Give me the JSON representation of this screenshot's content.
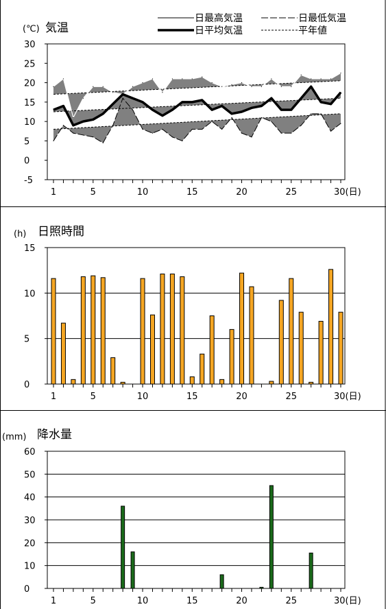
{
  "chart_data": [
    {
      "type": "line",
      "title": "気温",
      "unit_label": "(℃)",
      "x_range": [
        1,
        30
      ],
      "x_ticks": [
        1,
        5,
        10,
        15,
        20,
        25,
        30
      ],
      "x_tick_labels": [
        "1",
        "5",
        "10",
        "15",
        "20",
        "25",
        "30(日)"
      ],
      "ylim": [
        -5,
        30
      ],
      "y_ticks": [
        -5,
        0,
        5,
        10,
        15,
        20,
        25,
        30
      ],
      "y_tick_labels": [
        "-5",
        "0",
        "5",
        "10",
        "15",
        "20",
        "25",
        "30"
      ],
      "legend": [
        {
          "label": "日最高気温",
          "style": "thin-solid"
        },
        {
          "label": "日最低気温",
          "style": "thin-dash"
        },
        {
          "label": "日平均気温",
          "style": "thick-solid"
        },
        {
          "label": "平年値",
          "style": "dotted"
        }
      ],
      "fill_color": "#808080",
      "series": [
        {
          "name": "日最高気温",
          "x": [
            1,
            2,
            3,
            4,
            5,
            6,
            7,
            8,
            9,
            10,
            11,
            12,
            13,
            14,
            15,
            16,
            17,
            18,
            19,
            20,
            21,
            22,
            23,
            24,
            25,
            26,
            27,
            28,
            29,
            30
          ],
          "values": [
            19,
            21,
            11,
            16,
            19,
            19,
            17.5,
            17,
            19,
            20,
            21,
            17.5,
            21,
            21,
            21,
            21.5,
            20,
            19,
            19.5,
            20,
            19,
            19,
            21,
            19,
            19,
            22,
            21,
            21,
            21,
            22.5
          ]
        },
        {
          "name": "日最低気温",
          "x": [
            1,
            2,
            3,
            4,
            5,
            6,
            7,
            8,
            9,
            10,
            11,
            12,
            13,
            14,
            15,
            16,
            17,
            18,
            19,
            20,
            21,
            22,
            23,
            24,
            25,
            26,
            27,
            28,
            29,
            30
          ],
          "values": [
            5,
            9,
            7,
            6.5,
            6,
            4.5,
            9,
            16,
            13,
            8,
            7,
            8,
            6,
            5,
            8,
            8,
            10,
            8,
            11,
            7,
            6,
            11,
            10,
            7,
            7,
            9,
            12,
            12,
            7.5,
            9.5
          ]
        },
        {
          "name": "日平均気温",
          "x": [
            1,
            2,
            3,
            4,
            5,
            6,
            7,
            8,
            9,
            10,
            11,
            12,
            13,
            14,
            15,
            16,
            17,
            18,
            19,
            20,
            21,
            22,
            23,
            24,
            25,
            26,
            27,
            28,
            29,
            30
          ],
          "values": [
            13,
            14,
            9,
            10,
            10.5,
            12,
            14.5,
            17,
            16,
            15,
            13,
            11.5,
            13,
            15,
            15,
            15.5,
            13,
            14,
            12,
            12.5,
            13.5,
            14,
            16,
            13,
            13,
            16,
            19,
            15,
            14.5,
            17.5
          ]
        },
        {
          "name": "平年値 (最高)",
          "x": [
            1,
            30
          ],
          "values": [
            17,
            20.5
          ]
        },
        {
          "name": "平年値 (平均)",
          "x": [
            1,
            30
          ],
          "values": [
            12.5,
            16
          ]
        },
        {
          "name": "平年値 (最低)",
          "x": [
            1,
            30
          ],
          "values": [
            8,
            12
          ]
        }
      ]
    },
    {
      "type": "bar",
      "title": "日照時間",
      "unit_label": "(h)",
      "x_range": [
        1,
        30
      ],
      "x_ticks": [
        1,
        5,
        10,
        15,
        20,
        25,
        30
      ],
      "x_tick_labels": [
        "1",
        "5",
        "10",
        "15",
        "20",
        "25",
        "30(日)"
      ],
      "ylim": [
        0,
        15
      ],
      "y_ticks": [
        0,
        5,
        10,
        15
      ],
      "y_tick_labels": [
        "0",
        "5",
        "10",
        "15"
      ],
      "color": "#f5a623",
      "categories": [
        1,
        2,
        3,
        4,
        5,
        6,
        7,
        8,
        9,
        10,
        11,
        12,
        13,
        14,
        15,
        16,
        17,
        18,
        19,
        20,
        21,
        22,
        23,
        24,
        25,
        26,
        27,
        28,
        29,
        30
      ],
      "values": [
        11.6,
        6.7,
        0.5,
        11.8,
        11.9,
        11.7,
        2.9,
        0.2,
        0,
        11.6,
        7.6,
        12.1,
        12.1,
        11.8,
        0.8,
        3.3,
        7.5,
        0.5,
        6.0,
        12.2,
        10.7,
        0,
        0.3,
        9.2,
        11.6,
        7.9,
        0.2,
        6.9,
        12.6,
        7.9
      ]
    },
    {
      "type": "bar",
      "title": "降水量",
      "unit_label": "(mm)",
      "x_range": [
        1,
        30
      ],
      "x_ticks": [
        1,
        5,
        10,
        15,
        20,
        25,
        30
      ],
      "x_tick_labels": [
        "1",
        "5",
        "10",
        "15",
        "20",
        "25",
        "30(日)"
      ],
      "ylim": [
        0,
        60
      ],
      "y_ticks": [
        0,
        10,
        20,
        30,
        40,
        50,
        60
      ],
      "y_tick_labels": [
        "0",
        "10",
        "20",
        "30",
        "40",
        "50",
        "60"
      ],
      "color": "#1b6b1b",
      "categories": [
        1,
        2,
        3,
        4,
        5,
        6,
        7,
        8,
        9,
        10,
        11,
        12,
        13,
        14,
        15,
        16,
        17,
        18,
        19,
        20,
        21,
        22,
        23,
        24,
        25,
        26,
        27,
        28,
        29,
        30
      ],
      "values": [
        0,
        0,
        0,
        0,
        0,
        0,
        0,
        36,
        16,
        0,
        0,
        0,
        0,
        0,
        0,
        0,
        0,
        6,
        0,
        0,
        0,
        0.5,
        45,
        0,
        0,
        0,
        15.5,
        0,
        0,
        0
      ]
    }
  ]
}
